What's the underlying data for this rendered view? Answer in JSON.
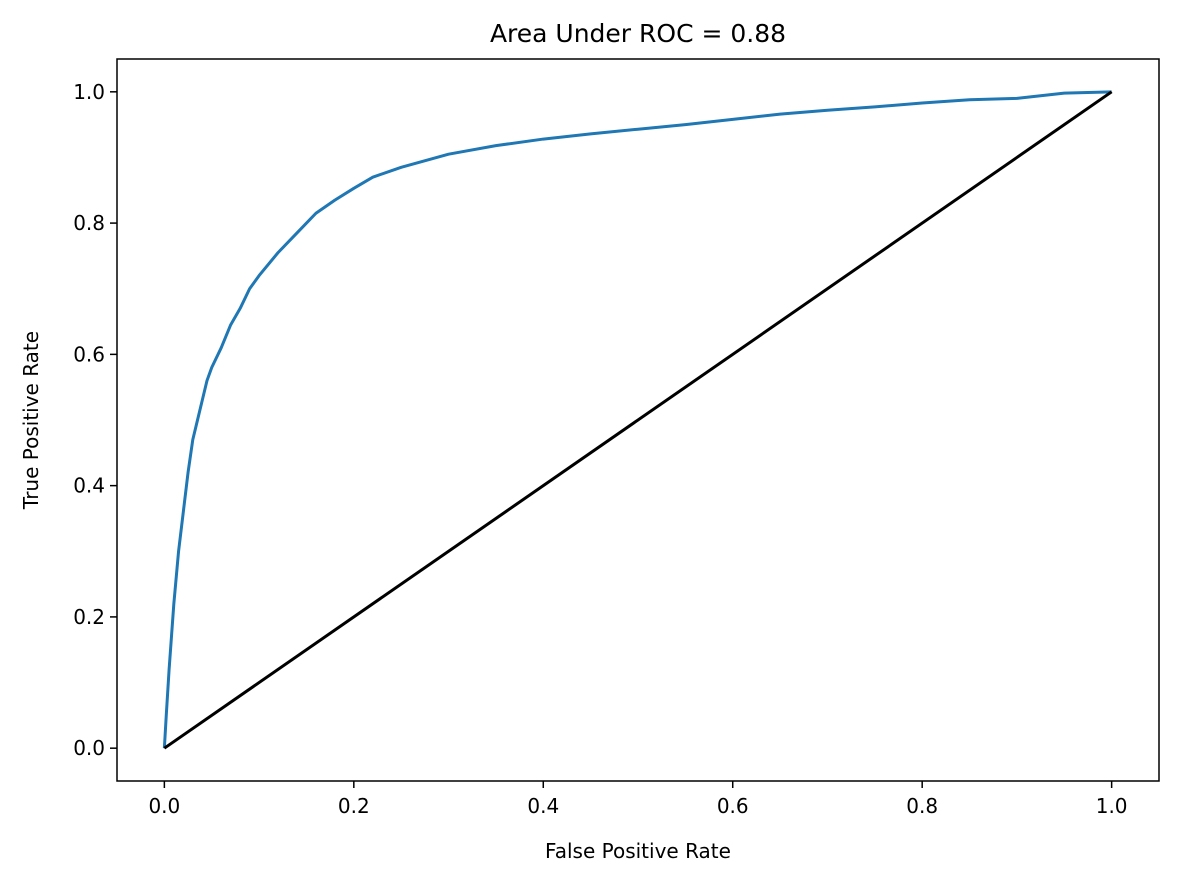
{
  "chart_data": {
    "type": "line",
    "title": "Area Under ROC = 0.88",
    "xlabel": "False Positive Rate",
    "ylabel": "True Positive Rate",
    "xlim": [
      -0.05,
      1.05
    ],
    "ylim": [
      -0.05,
      1.05
    ],
    "xticks": [
      "0.0",
      "0.2",
      "0.4",
      "0.6",
      "0.8",
      "1.0"
    ],
    "yticks": [
      "0.0",
      "0.2",
      "0.4",
      "0.6",
      "0.8",
      "1.0"
    ],
    "grid": false,
    "series": [
      {
        "color": "#1f77b4",
        "x": [
          0.0,
          0.002,
          0.005,
          0.01,
          0.015,
          0.02,
          0.025,
          0.03,
          0.035,
          0.04,
          0.045,
          0.05,
          0.06,
          0.07,
          0.08,
          0.09,
          0.1,
          0.12,
          0.14,
          0.16,
          0.18,
          0.2,
          0.22,
          0.25,
          0.3,
          0.35,
          0.4,
          0.45,
          0.5,
          0.55,
          0.6,
          0.65,
          0.7,
          0.75,
          0.8,
          0.85,
          0.9,
          0.95,
          1.0
        ],
        "y": [
          0.0,
          0.05,
          0.12,
          0.22,
          0.3,
          0.36,
          0.42,
          0.47,
          0.5,
          0.53,
          0.56,
          0.58,
          0.61,
          0.645,
          0.67,
          0.7,
          0.72,
          0.755,
          0.785,
          0.815,
          0.835,
          0.853,
          0.87,
          0.885,
          0.905,
          0.918,
          0.928,
          0.936,
          0.943,
          0.95,
          0.958,
          0.966,
          0.972,
          0.977,
          0.983,
          0.988,
          0.99,
          0.998,
          1.0
        ]
      },
      {
        "color": "#000000",
        "x": [
          0.0,
          1.0
        ],
        "y": [
          0.0,
          1.0
        ]
      }
    ]
  }
}
